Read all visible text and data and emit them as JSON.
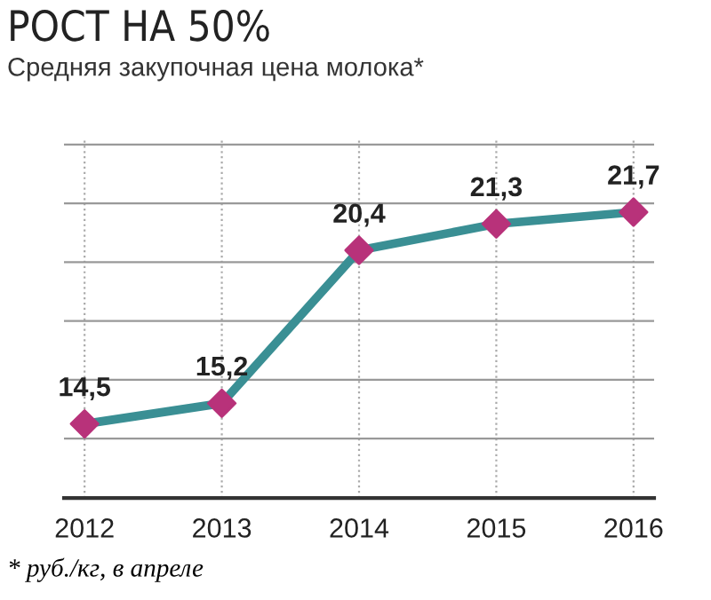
{
  "chart_data": {
    "type": "line",
    "title": "РОСТ НА 50%",
    "subtitle": "Средняя закупочная цена молока*",
    "categories": [
      "2012",
      "2013",
      "2014",
      "2015",
      "2016"
    ],
    "series": [
      {
        "color": "#3a8f94",
        "colors": [
          "#b8327a",
          "#b8327a",
          "#b8327a",
          "#b8327a",
          "#b8327a"
        ],
        "values": [
          14.5,
          15.2,
          20.4,
          21.3,
          21.7
        ],
        "value_labels": [
          "14,5",
          "15,2",
          "20,4",
          "21,3",
          "21,7"
        ]
      }
    ],
    "marker": "diamond",
    "tick_labels": "x",
    "grid": true,
    "legend": false,
    "annotations": [
      "* руб./кг, в апреле"
    ]
  }
}
